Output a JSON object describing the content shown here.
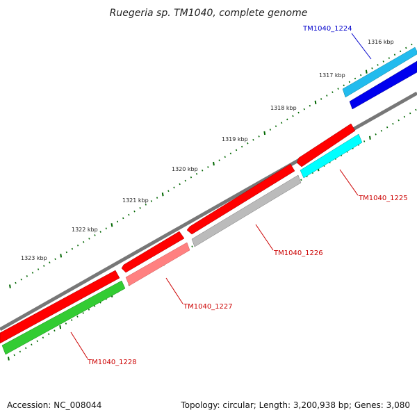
{
  "title": "Ruegeria sp. TM1040, complete genome",
  "footer": {
    "accession": "Accession: NC_008044",
    "summary": "Topology: circular; Length: 3,200,938 bp; Genes: 3,080"
  },
  "ticks": [
    {
      "label": "1316 kbp",
      "kbp": 1316
    },
    {
      "label": "1317 kbp",
      "kbp": 1317
    },
    {
      "label": "1318 kbp",
      "kbp": 1318
    },
    {
      "label": "1319 kbp",
      "kbp": 1319
    },
    {
      "label": "1320 kbp",
      "kbp": 1320
    },
    {
      "label": "1321 kbp",
      "kbp": 1321
    },
    {
      "label": "1322 kbp",
      "kbp": 1322
    },
    {
      "label": "1323 kbp",
      "kbp": 1323
    }
  ],
  "genes": [
    {
      "name": "TM1040_1224",
      "label_color": "#0000cc",
      "fill": "#33bbee",
      "fill_alt": "#0000ee",
      "strand": "outer"
    },
    {
      "name": "TM1040_1225",
      "label_color": "#cc0000",
      "fill": "#ff0000",
      "fill_alt": "#00ffff",
      "strand": "both"
    },
    {
      "name": "TM1040_1226",
      "label_color": "#cc0000",
      "fill": "#ff0000",
      "fill_alt": "#bbbbbb",
      "strand": "both"
    },
    {
      "name": "TM1040_1227",
      "label_color": "#cc0000",
      "fill": "#ff0000",
      "fill_alt": "#ff8080",
      "strand": "both"
    },
    {
      "name": "TM1040_1228",
      "label_color": "#cc0000",
      "fill": "#ff0000",
      "fill_alt": "#33cc33",
      "strand": "both"
    }
  ],
  "colors": {
    "backbone": "#777777",
    "tick_major": "#006600",
    "tick_minor": "#008800"
  }
}
